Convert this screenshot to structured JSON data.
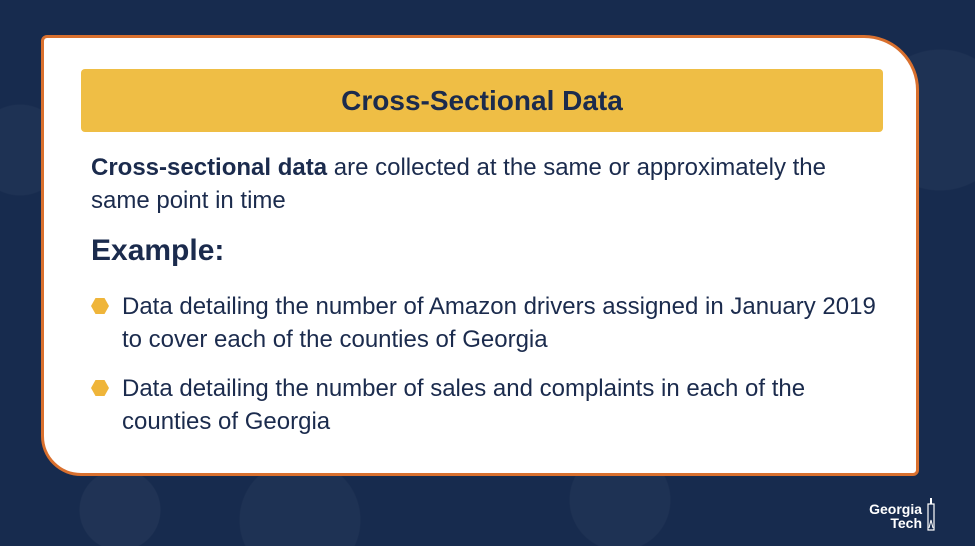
{
  "slide": {
    "title": "Cross-Sectional Data",
    "definition": {
      "term": "Cross-sectional data",
      "rest": " are collected at the same or approximately the same point in time"
    },
    "example_heading": "Example:",
    "bullets": [
      "Data detailing the number of Amazon drivers assigned in January 2019 to cover each of the counties of Georgia",
      "Data detailing the number of sales and complaints in each of the counties of Georgia"
    ]
  },
  "logo": {
    "line1": "Georgia",
    "line2": "Tech"
  },
  "colors": {
    "background": "#172b4e",
    "card_border": "#d9702e",
    "title_bar": "#efbe45",
    "text": "#1b2b4d",
    "bullet": "#efb53a"
  },
  "icons": {
    "bullet": "hexagon-bullet-icon",
    "logo": "georgia-tech-tower-icon"
  }
}
